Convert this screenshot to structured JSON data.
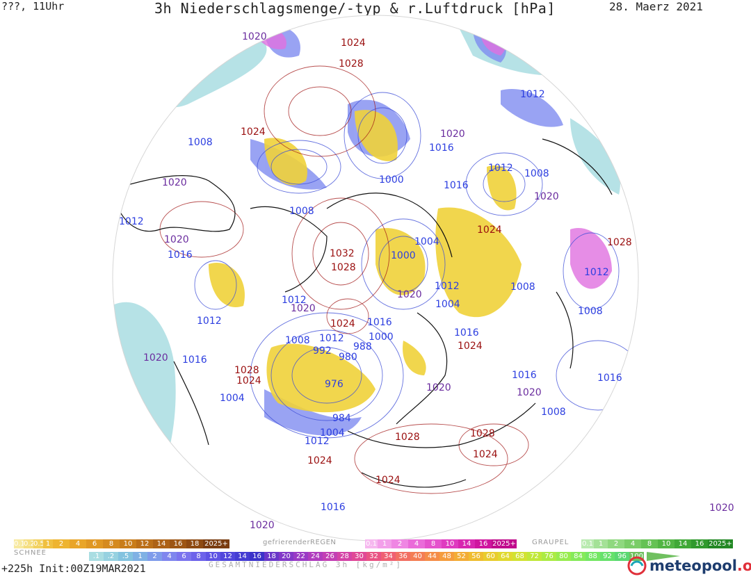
{
  "header": {
    "left": "???, 11Uhr",
    "title": "3h Niederschlagsmenge/-typ & r.Luftdruck [hPa]",
    "date": "28. Maerz 2021"
  },
  "map": {
    "pressure_labels": [
      {
        "text": "1020",
        "color": "purple"
      },
      {
        "text": "1024",
        "color": "red"
      },
      {
        "text": "1028",
        "color": "red"
      },
      {
        "text": "1012",
        "color": "blue"
      },
      {
        "text": "1024",
        "color": "red"
      },
      {
        "text": "1020",
        "color": "purple"
      },
      {
        "text": "1016",
        "color": "blue"
      },
      {
        "text": "1008",
        "color": "blue"
      },
      {
        "text": "1000",
        "color": "blue"
      },
      {
        "text": "1012",
        "color": "blue"
      },
      {
        "text": "1008",
        "color": "blue"
      },
      {
        "text": "1020",
        "color": "purple"
      },
      {
        "text": "1016",
        "color": "blue"
      },
      {
        "text": "1008",
        "color": "blue"
      },
      {
        "text": "1020",
        "color": "purple"
      },
      {
        "text": "1012",
        "color": "blue"
      },
      {
        "text": "1024",
        "color": "red"
      },
      {
        "text": "1020",
        "color": "purple"
      },
      {
        "text": "1016",
        "color": "blue"
      },
      {
        "text": "1028",
        "color": "red"
      },
      {
        "text": "1032",
        "color": "red"
      },
      {
        "text": "1028",
        "color": "red"
      },
      {
        "text": "1000",
        "color": "blue"
      },
      {
        "text": "1004",
        "color": "blue"
      },
      {
        "text": "1012",
        "color": "blue"
      },
      {
        "text": "1012",
        "color": "blue"
      },
      {
        "text": "1008",
        "color": "blue"
      },
      {
        "text": "1020",
        "color": "purple"
      },
      {
        "text": "1012",
        "color": "blue"
      },
      {
        "text": "1008",
        "color": "blue"
      },
      {
        "text": "1004",
        "color": "blue"
      },
      {
        "text": "1012",
        "color": "blue"
      },
      {
        "text": "1016",
        "color": "blue"
      },
      {
        "text": "1020",
        "color": "purple"
      },
      {
        "text": "1024",
        "color": "red"
      },
      {
        "text": "1016",
        "color": "blue"
      },
      {
        "text": "1000",
        "color": "blue"
      },
      {
        "text": "1008",
        "color": "blue"
      },
      {
        "text": "1012",
        "color": "blue"
      },
      {
        "text": "992",
        "color": "blue"
      },
      {
        "text": "988",
        "color": "blue"
      },
      {
        "text": "980",
        "color": "blue"
      },
      {
        "text": "976",
        "color": "blue"
      },
      {
        "text": "1016",
        "color": "blue"
      },
      {
        "text": "1024",
        "color": "red"
      },
      {
        "text": "1020",
        "color": "purple"
      },
      {
        "text": "1016",
        "color": "blue"
      },
      {
        "text": "1028",
        "color": "red"
      },
      {
        "text": "1024",
        "color": "red"
      },
      {
        "text": "1020",
        "color": "purple"
      },
      {
        "text": "1016",
        "color": "blue"
      },
      {
        "text": "1004",
        "color": "blue"
      },
      {
        "text": "1020",
        "color": "purple"
      },
      {
        "text": "1020",
        "color": "purple"
      },
      {
        "text": "984",
        "color": "blue"
      },
      {
        "text": "1004",
        "color": "blue"
      },
      {
        "text": "1012",
        "color": "blue"
      },
      {
        "text": "1008",
        "color": "blue"
      },
      {
        "text": "1028",
        "color": "red"
      },
      {
        "text": "1028",
        "color": "red"
      },
      {
        "text": "1024",
        "color": "red"
      },
      {
        "text": "1024",
        "color": "red"
      },
      {
        "text": "1024",
        "color": "red"
      },
      {
        "text": "1016",
        "color": "blue"
      },
      {
        "text": "1020",
        "color": "purple"
      }
    ]
  },
  "legend": {
    "snow_title": "SCHNEE",
    "snow_cells": [
      "0.1",
      "0.2",
      "0.5",
      "1",
      "2",
      "4",
      "6",
      "8",
      "10",
      "12",
      "14",
      "16",
      "18",
      "2025+"
    ],
    "frz_title": "gefrierenderREGEN",
    "frz_cells": [
      "0.1",
      "1",
      "2",
      "4",
      "8",
      "10",
      "14",
      "16",
      "2025+"
    ],
    "graupel_title": "GRAUPEL",
    "graupel_cells": [
      "0.1",
      "1",
      "2",
      "4",
      "8",
      "10",
      "14",
      "16",
      "2025+"
    ],
    "total_cells": [
      ".1",
      ".2",
      ".5",
      "1",
      "2",
      "4",
      "6",
      "8",
      "10",
      "12",
      "14",
      "16",
      "18",
      "20",
      "22",
      "24",
      "26",
      "28",
      "30",
      "32",
      "34",
      "36",
      "40",
      "44",
      "48",
      "52",
      "56",
      "60",
      "64",
      "68",
      "72",
      "76",
      "80",
      "84",
      "88",
      "92",
      "96",
      "100"
    ],
    "total_title": "GESAMTNIEDERSCHLAG 3h [kg/m²]"
  },
  "footer": {
    "init": "+225h Init:00Z19MAR2021",
    "logo_main": "meteopool",
    "logo_tld": ".org"
  },
  "colors": {
    "blue": "#2c3ee0",
    "red": "#9a0f0f",
    "purple": "#6a2c9e",
    "snow_yellow": "#f0d23a",
    "rain_blue": "#7f8cf0",
    "cyan": "#a7dbe0"
  }
}
